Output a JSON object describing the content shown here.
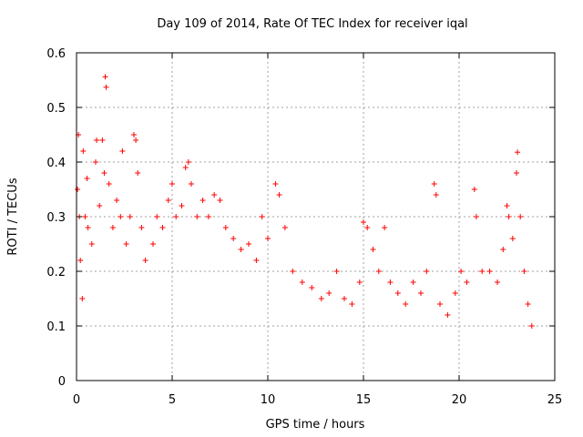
{
  "chart_data": {
    "type": "scatter",
    "title": "Day 109 of 2014, Rate Of TEC Index for receiver iqal",
    "xlabel": "GPS time / hours",
    "ylabel": "ROTI / TECUs",
    "xlim": [
      0,
      25
    ],
    "ylim": [
      0,
      0.6
    ],
    "xticks": [
      0,
      5,
      10,
      15,
      20,
      25
    ],
    "yticks": [
      0,
      0.1,
      0.2,
      0.3,
      0.4,
      0.5,
      0.6
    ],
    "xtick_labels": [
      "0",
      "5",
      "10",
      "15",
      "20",
      "25"
    ],
    "ytick_labels": [
      "0",
      "0.1",
      "0.2",
      "0.3",
      "0.4",
      "0.5",
      "0.6"
    ],
    "grid": true,
    "marker": "+",
    "color": "#ff0000",
    "series": [
      {
        "name": "ROTI",
        "points": [
          [
            0.05,
            0.35
          ],
          [
            0.1,
            0.45
          ],
          [
            0.15,
            0.3
          ],
          [
            0.2,
            0.22
          ],
          [
            0.3,
            0.15
          ],
          [
            0.35,
            0.42
          ],
          [
            0.45,
            0.3
          ],
          [
            0.55,
            0.37
          ],
          [
            0.6,
            0.28
          ],
          [
            0.8,
            0.25
          ],
          [
            1.0,
            0.4
          ],
          [
            1.05,
            0.44
          ],
          [
            1.2,
            0.32
          ],
          [
            1.35,
            0.44
          ],
          [
            1.45,
            0.38
          ],
          [
            1.5,
            0.556
          ],
          [
            1.55,
            0.537
          ],
          [
            1.7,
            0.36
          ],
          [
            1.9,
            0.28
          ],
          [
            2.1,
            0.33
          ],
          [
            2.3,
            0.3
          ],
          [
            2.4,
            0.42
          ],
          [
            2.6,
            0.25
          ],
          [
            2.8,
            0.3
          ],
          [
            3.0,
            0.45
          ],
          [
            3.1,
            0.44
          ],
          [
            3.2,
            0.38
          ],
          [
            3.4,
            0.28
          ],
          [
            3.6,
            0.22
          ],
          [
            4.0,
            0.25
          ],
          [
            4.2,
            0.3
          ],
          [
            4.5,
            0.28
          ],
          [
            4.8,
            0.33
          ],
          [
            5.0,
            0.36
          ],
          [
            5.2,
            0.3
          ],
          [
            5.5,
            0.32
          ],
          [
            5.7,
            0.39
          ],
          [
            5.85,
            0.4
          ],
          [
            6.0,
            0.36
          ],
          [
            6.3,
            0.3
          ],
          [
            6.6,
            0.33
          ],
          [
            6.9,
            0.3
          ],
          [
            7.2,
            0.34
          ],
          [
            7.5,
            0.33
          ],
          [
            7.8,
            0.28
          ],
          [
            8.2,
            0.26
          ],
          [
            8.6,
            0.24
          ],
          [
            9.0,
            0.25
          ],
          [
            9.4,
            0.22
          ],
          [
            9.7,
            0.3
          ],
          [
            10.0,
            0.26
          ],
          [
            10.4,
            0.36
          ],
          [
            10.6,
            0.34
          ],
          [
            10.9,
            0.28
          ],
          [
            11.3,
            0.2
          ],
          [
            11.8,
            0.18
          ],
          [
            12.3,
            0.17
          ],
          [
            12.8,
            0.15
          ],
          [
            13.2,
            0.16
          ],
          [
            13.6,
            0.2
          ],
          [
            14.0,
            0.15
          ],
          [
            14.4,
            0.14
          ],
          [
            14.8,
            0.18
          ],
          [
            15.0,
            0.29
          ],
          [
            15.2,
            0.28
          ],
          [
            15.5,
            0.24
          ],
          [
            15.8,
            0.2
          ],
          [
            16.1,
            0.28
          ],
          [
            16.4,
            0.18
          ],
          [
            16.8,
            0.16
          ],
          [
            17.2,
            0.14
          ],
          [
            17.6,
            0.18
          ],
          [
            18.0,
            0.16
          ],
          [
            18.3,
            0.2
          ],
          [
            18.7,
            0.36
          ],
          [
            18.8,
            0.34
          ],
          [
            19.0,
            0.14
          ],
          [
            19.4,
            0.12
          ],
          [
            19.8,
            0.16
          ],
          [
            20.1,
            0.2
          ],
          [
            20.4,
            0.18
          ],
          [
            20.8,
            0.35
          ],
          [
            20.9,
            0.3
          ],
          [
            21.2,
            0.2
          ],
          [
            21.6,
            0.2
          ],
          [
            22.0,
            0.18
          ],
          [
            22.3,
            0.24
          ],
          [
            22.5,
            0.32
          ],
          [
            22.6,
            0.3
          ],
          [
            22.8,
            0.26
          ],
          [
            23.0,
            0.38
          ],
          [
            23.05,
            0.418
          ],
          [
            23.2,
            0.3
          ],
          [
            23.4,
            0.2
          ],
          [
            23.6,
            0.14
          ],
          [
            23.8,
            0.1
          ]
        ]
      }
    ]
  }
}
